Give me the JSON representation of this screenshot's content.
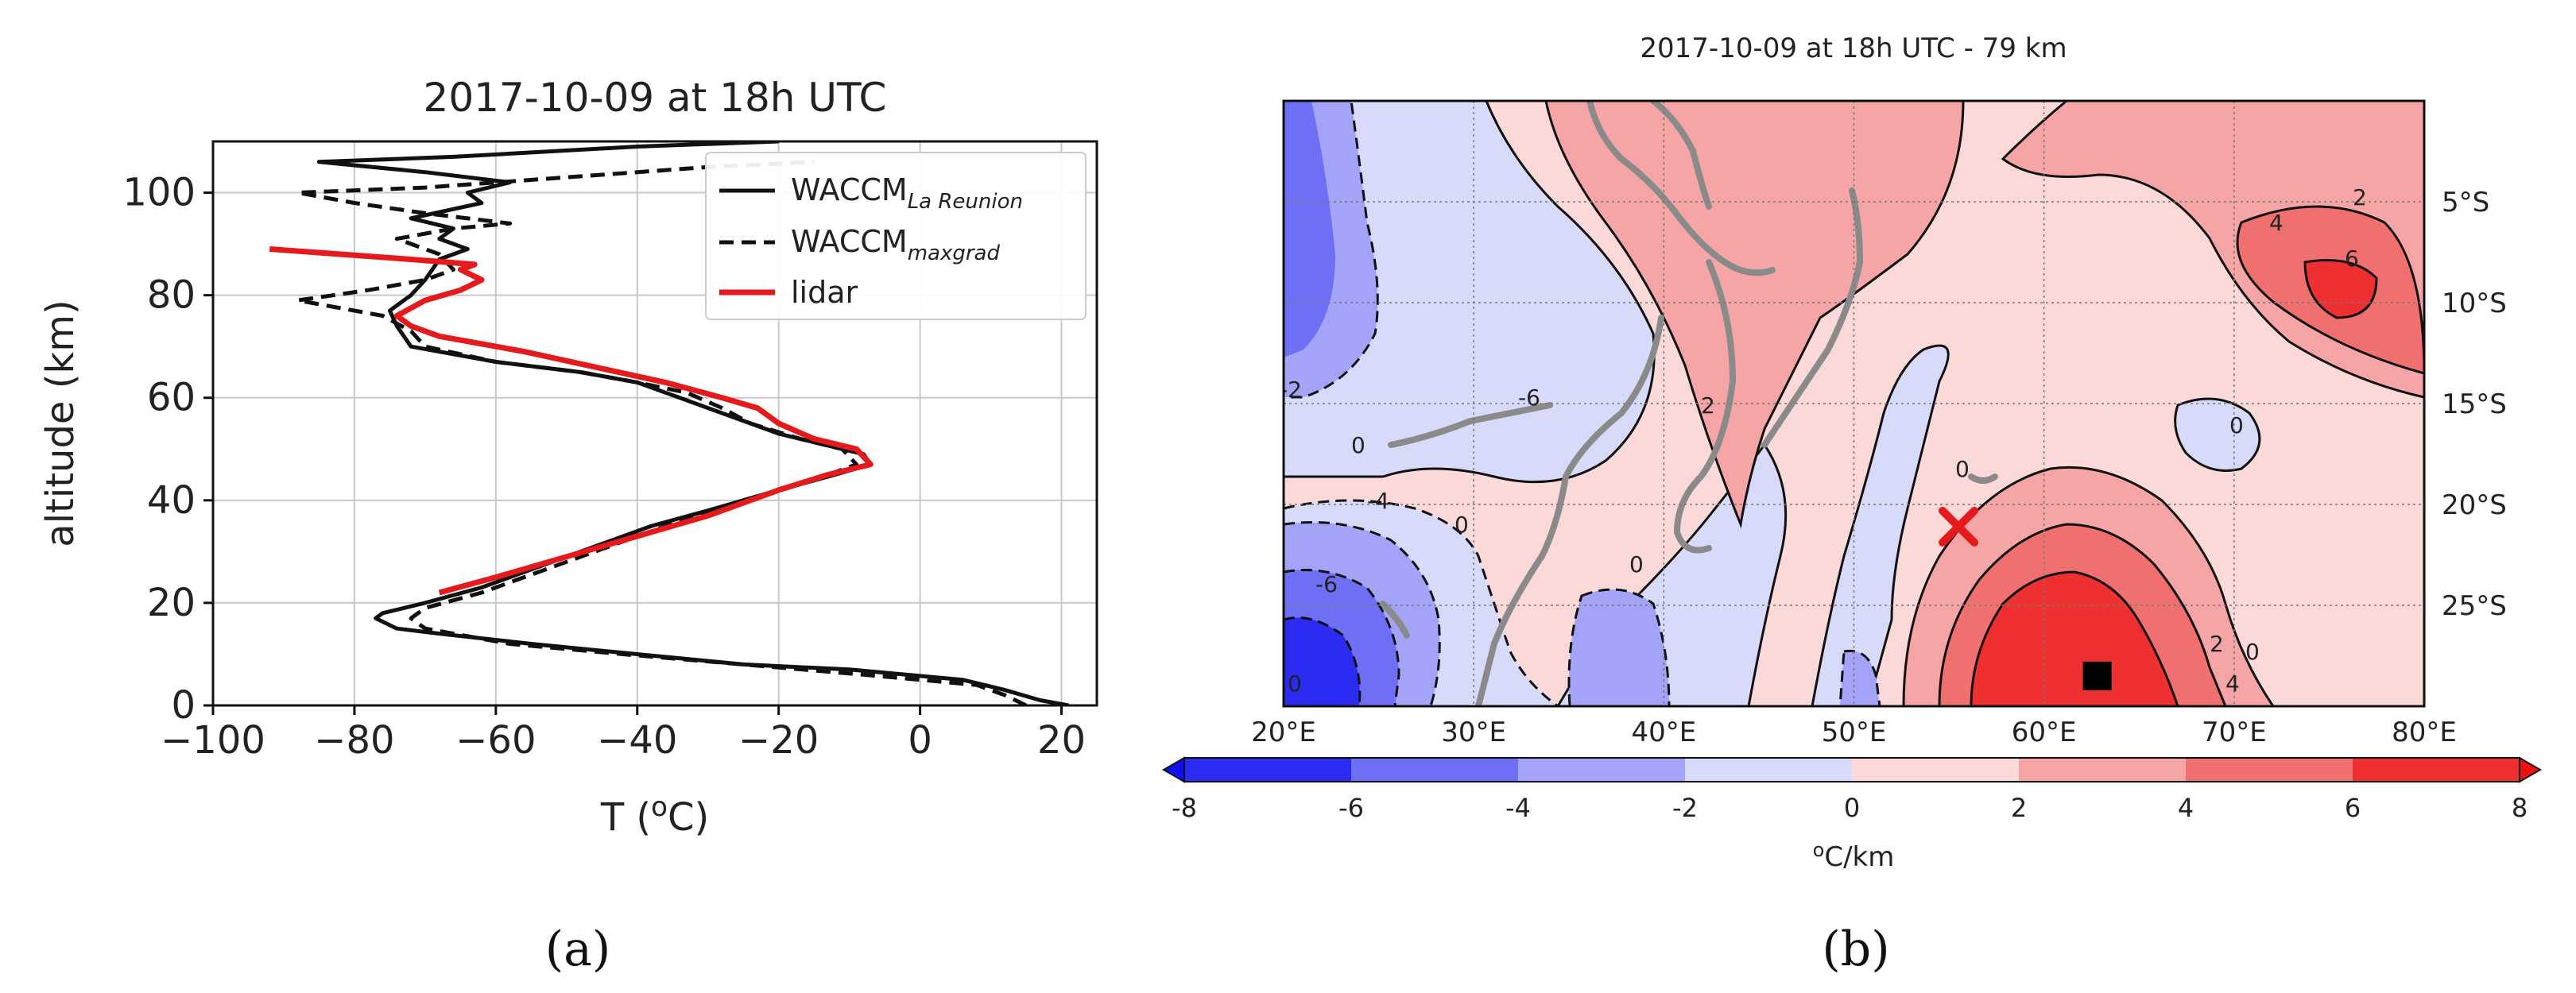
{
  "figure": {
    "panel_a_label": "(a)",
    "panel_b_label": "(b)"
  },
  "chart_data": [
    {
      "type": "line",
      "title": "2017-10-09 at 18h UTC",
      "xlabel": "T (°C)",
      "xlabel_parts": {
        "base": "T (",
        "sup": "o",
        "tail": "C)"
      },
      "ylabel": "altitude (km)",
      "xlim": [
        -100,
        25
      ],
      "ylim": [
        0,
        110
      ],
      "xticks": [
        -100,
        -80,
        -60,
        -40,
        -20,
        0,
        20
      ],
      "yticks": [
        0,
        20,
        40,
        60,
        80,
        100
      ],
      "xtick_labels": [
        "−100",
        "−80",
        "−60",
        "−40",
        "−20",
        "0",
        "20"
      ],
      "ytick_labels": [
        "0",
        "20",
        "40",
        "60",
        "80",
        "100"
      ],
      "grid": true,
      "legend_position": "top-right",
      "series": [
        {
          "name": "WACCM La Reunion",
          "legend_main": "WACCM",
          "legend_sub": "La Reunion",
          "style": "solid",
          "color": "#111111",
          "points": [
            [
              21,
              0
            ],
            [
              17,
              1
            ],
            [
              12,
              3
            ],
            [
              6,
              5
            ],
            [
              -10,
              7
            ],
            [
              -25,
              8
            ],
            [
              -40,
              10
            ],
            [
              -55,
              12
            ],
            [
              -68,
              14
            ],
            [
              -74,
              15
            ],
            [
              -77,
              17
            ],
            [
              -76,
              18
            ],
            [
              -70,
              20
            ],
            [
              -62,
              23
            ],
            [
              -54,
              27
            ],
            [
              -46,
              31
            ],
            [
              -38,
              35
            ],
            [
              -30,
              38
            ],
            [
              -20,
              42
            ],
            [
              -12,
              45
            ],
            [
              -7,
              47
            ],
            [
              -8,
              49
            ],
            [
              -14,
              51
            ],
            [
              -20,
              53
            ],
            [
              -26,
              56
            ],
            [
              -30,
              58
            ],
            [
              -34,
              60
            ],
            [
              -40,
              63
            ],
            [
              -48,
              65
            ],
            [
              -60,
              67
            ],
            [
              -72,
              70
            ],
            [
              -74,
              74
            ],
            [
              -75,
              77
            ],
            [
              -72,
              80
            ],
            [
              -70,
              83
            ],
            [
              -69,
              85
            ],
            [
              -68,
              87
            ],
            [
              -64,
              89
            ],
            [
              -68,
              91
            ],
            [
              -66,
              93
            ],
            [
              -72,
              95
            ],
            [
              -62,
              98
            ],
            [
              -64,
              100
            ],
            [
              -58,
              102
            ],
            [
              -70,
              104
            ],
            [
              -85,
              106
            ],
            [
              -66,
              107
            ],
            [
              -40,
              109
            ],
            [
              -20,
              110
            ]
          ]
        },
        {
          "name": "WACCM maxgrad",
          "legend_main": "WACCM",
          "legend_sub": "maxgrad",
          "style": "dashed",
          "color": "#111111",
          "points": [
            [
              15,
              0
            ],
            [
              12,
              2
            ],
            [
              8,
              4
            ],
            [
              -8,
              6
            ],
            [
              -25,
              8
            ],
            [
              -42,
              10
            ],
            [
              -58,
              12
            ],
            [
              -70,
              15
            ],
            [
              -72,
              17
            ],
            [
              -70,
              19
            ],
            [
              -62,
              22
            ],
            [
              -54,
              26
            ],
            [
              -46,
              30
            ],
            [
              -36,
              35
            ],
            [
              -25,
              40
            ],
            [
              -15,
              44
            ],
            [
              -9,
              47
            ],
            [
              -11,
              50
            ],
            [
              -17,
              52
            ],
            [
              -24,
              55
            ],
            [
              -28,
              58
            ],
            [
              -33,
              61
            ],
            [
              -40,
              63
            ],
            [
              -48,
              65
            ],
            [
              -60,
              67
            ],
            [
              -70,
              70
            ],
            [
              -72,
              73
            ],
            [
              -76,
              76
            ],
            [
              -88,
              79
            ],
            [
              -78,
              81
            ],
            [
              -70,
              83
            ],
            [
              -66,
              85
            ],
            [
              -68,
              88
            ],
            [
              -74,
              91
            ],
            [
              -66,
              93
            ],
            [
              -58,
              94
            ],
            [
              -70,
              96
            ],
            [
              -80,
              98
            ],
            [
              -88,
              100
            ],
            [
              -70,
              101
            ],
            [
              -50,
              103
            ],
            [
              -30,
              105
            ],
            [
              -15,
              106
            ]
          ]
        },
        {
          "name": "lidar",
          "legend_main": "lidar",
          "legend_sub": "",
          "style": "solid",
          "color": "#e41a1c",
          "points": [
            [
              -68,
              22
            ],
            [
              -60,
              25
            ],
            [
              -50,
              29
            ],
            [
              -40,
              33
            ],
            [
              -30,
              37
            ],
            [
              -20,
              42
            ],
            [
              -13,
              45
            ],
            [
              -7,
              47
            ],
            [
              -9,
              50
            ],
            [
              -15,
              52
            ],
            [
              -20,
              55
            ],
            [
              -23,
              58
            ],
            [
              -28,
              60
            ],
            [
              -36,
              63
            ],
            [
              -46,
              66
            ],
            [
              -56,
              69
            ],
            [
              -68,
              72
            ],
            [
              -72,
              74
            ],
            [
              -74,
              76
            ],
            [
              -70,
              79
            ],
            [
              -65,
              81
            ],
            [
              -62,
              83
            ],
            [
              -65,
              85
            ],
            [
              -63,
              86
            ],
            [
              -72,
              87
            ],
            [
              -92,
              89
            ]
          ]
        }
      ]
    },
    {
      "type": "heatmap",
      "title": "2017-10-09 at 18h UTC - 79 km",
      "xlim": [
        20,
        80
      ],
      "ylim": [
        -30,
        0
      ],
      "xtick_labels": [
        "20°E",
        "30°E",
        "40°E",
        "50°E",
        "60°E",
        "70°E",
        "80°E"
      ],
      "xticks": [
        20,
        30,
        40,
        50,
        60,
        70,
        80
      ],
      "ytick_labels": [
        "5°S",
        "10°S",
        "15°S",
        "20°S",
        "25°S"
      ],
      "yticks": [
        -5,
        -10,
        -15,
        -20,
        -25
      ],
      "grid": true,
      "colorbar": {
        "label": "°C/km",
        "label_parts": {
          "sup": "o",
          "tail": "C/km"
        },
        "tick_labels": [
          "-8",
          "-6",
          "-4",
          "-2",
          "0",
          "2",
          "4",
          "6",
          "8"
        ],
        "levels": [
          -8,
          -6,
          -4,
          -2,
          0,
          2,
          4,
          6,
          8
        ],
        "colors": [
          "#2b2bf2",
          "#6f6ff5",
          "#a3a3f7",
          "#d8dafa",
          "#fbd9d9",
          "#f5a5a5",
          "#f07070",
          "#ee3030"
        ]
      },
      "contour_labels": [
        "-2",
        "0",
        "0",
        "0",
        "2",
        "0",
        "0",
        "-4",
        "-6",
        "-6",
        "2",
        "4",
        "2",
        "4",
        "6",
        "0",
        "0"
      ],
      "markers": [
        {
          "type": "x",
          "label": "",
          "lon": 55.5,
          "lat": -21.1,
          "color": "#e41a1c"
        },
        {
          "type": "square",
          "label": "",
          "lon": 62.8,
          "lat": -28.5,
          "color": "#000000"
        }
      ]
    }
  ]
}
